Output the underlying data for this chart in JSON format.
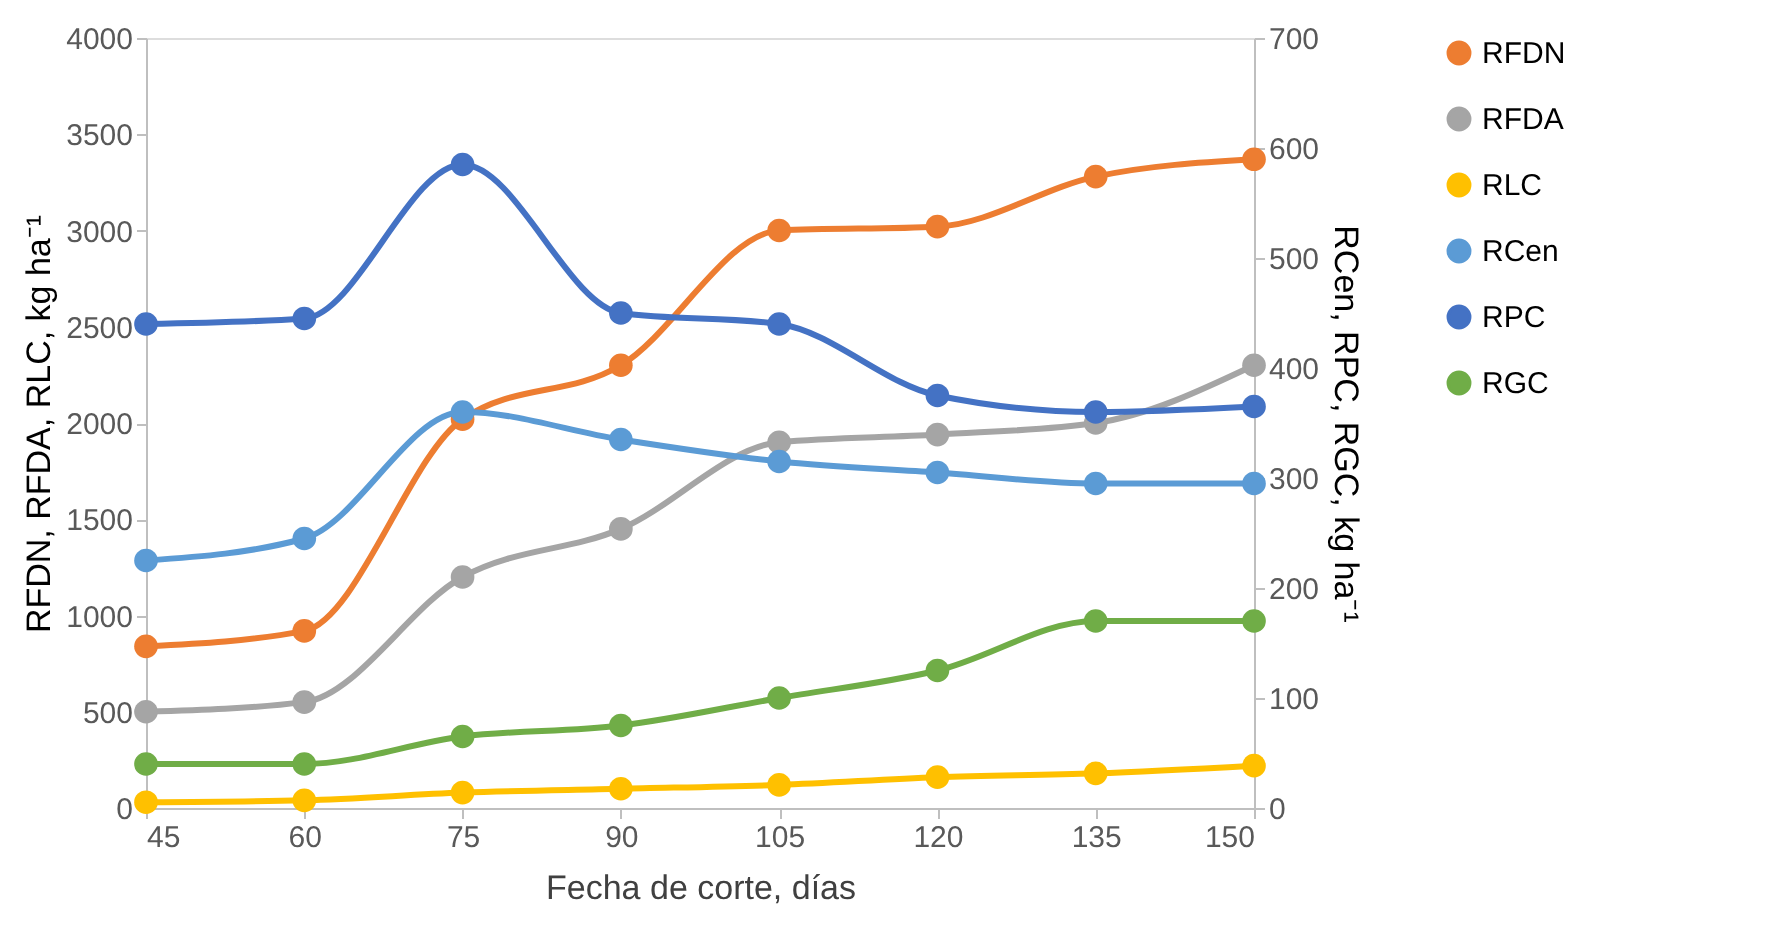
{
  "chart_data": {
    "type": "line",
    "xlabel": "Fecha de corte, días",
    "ylabel": "RFDN, RFDA, RLC, kg ha⁻¹",
    "y2label": "RCen, RPC, RGC, kg ha⁻¹",
    "x": [
      45,
      60,
      75,
      90,
      105,
      120,
      135,
      150
    ],
    "xlim": [
      45,
      150
    ],
    "xticks": [
      45,
      60,
      75,
      90,
      105,
      120,
      135,
      150
    ],
    "ylim": [
      0,
      4000
    ],
    "yticks": [
      0,
      500,
      1000,
      1500,
      2000,
      2500,
      3000,
      3500,
      4000
    ],
    "y2lim": [
      0,
      700
    ],
    "y2ticks": [
      0,
      100,
      200,
      300,
      400,
      500,
      600,
      700
    ],
    "grid": false,
    "legend": "right",
    "marker": "circle",
    "line_style": "solid",
    "series": [
      {
        "name": "RFDN",
        "color": "#ed7d31",
        "values": [
          840,
          920,
          2020,
          2300,
          3000,
          3020,
          3280,
          3370
        ]
      },
      {
        "name": "RFDA",
        "color": "#a5a5a5",
        "values": [
          500,
          550,
          1200,
          1450,
          1900,
          1940,
          2000,
          2300
        ]
      },
      {
        "name": "RLC",
        "color": "#ffc000",
        "values": [
          30,
          40,
          80,
          100,
          120,
          160,
          180,
          220
        ]
      },
      {
        "name": "RCen",
        "color": "#5b9bd5",
        "axis": "y2",
        "values": [
          225,
          245,
          360,
          335,
          315,
          305,
          295,
          295
        ]
      },
      {
        "name": "RPC",
        "color": "#4472c4",
        "axis": "y2",
        "values": [
          440,
          445,
          585,
          450,
          440,
          375,
          360,
          365
        ]
      },
      {
        "name": "RGC",
        "color": "#70ad47",
        "axis": "y2",
        "values": [
          40,
          40,
          65,
          75,
          100,
          125,
          170,
          170
        ]
      }
    ]
  }
}
